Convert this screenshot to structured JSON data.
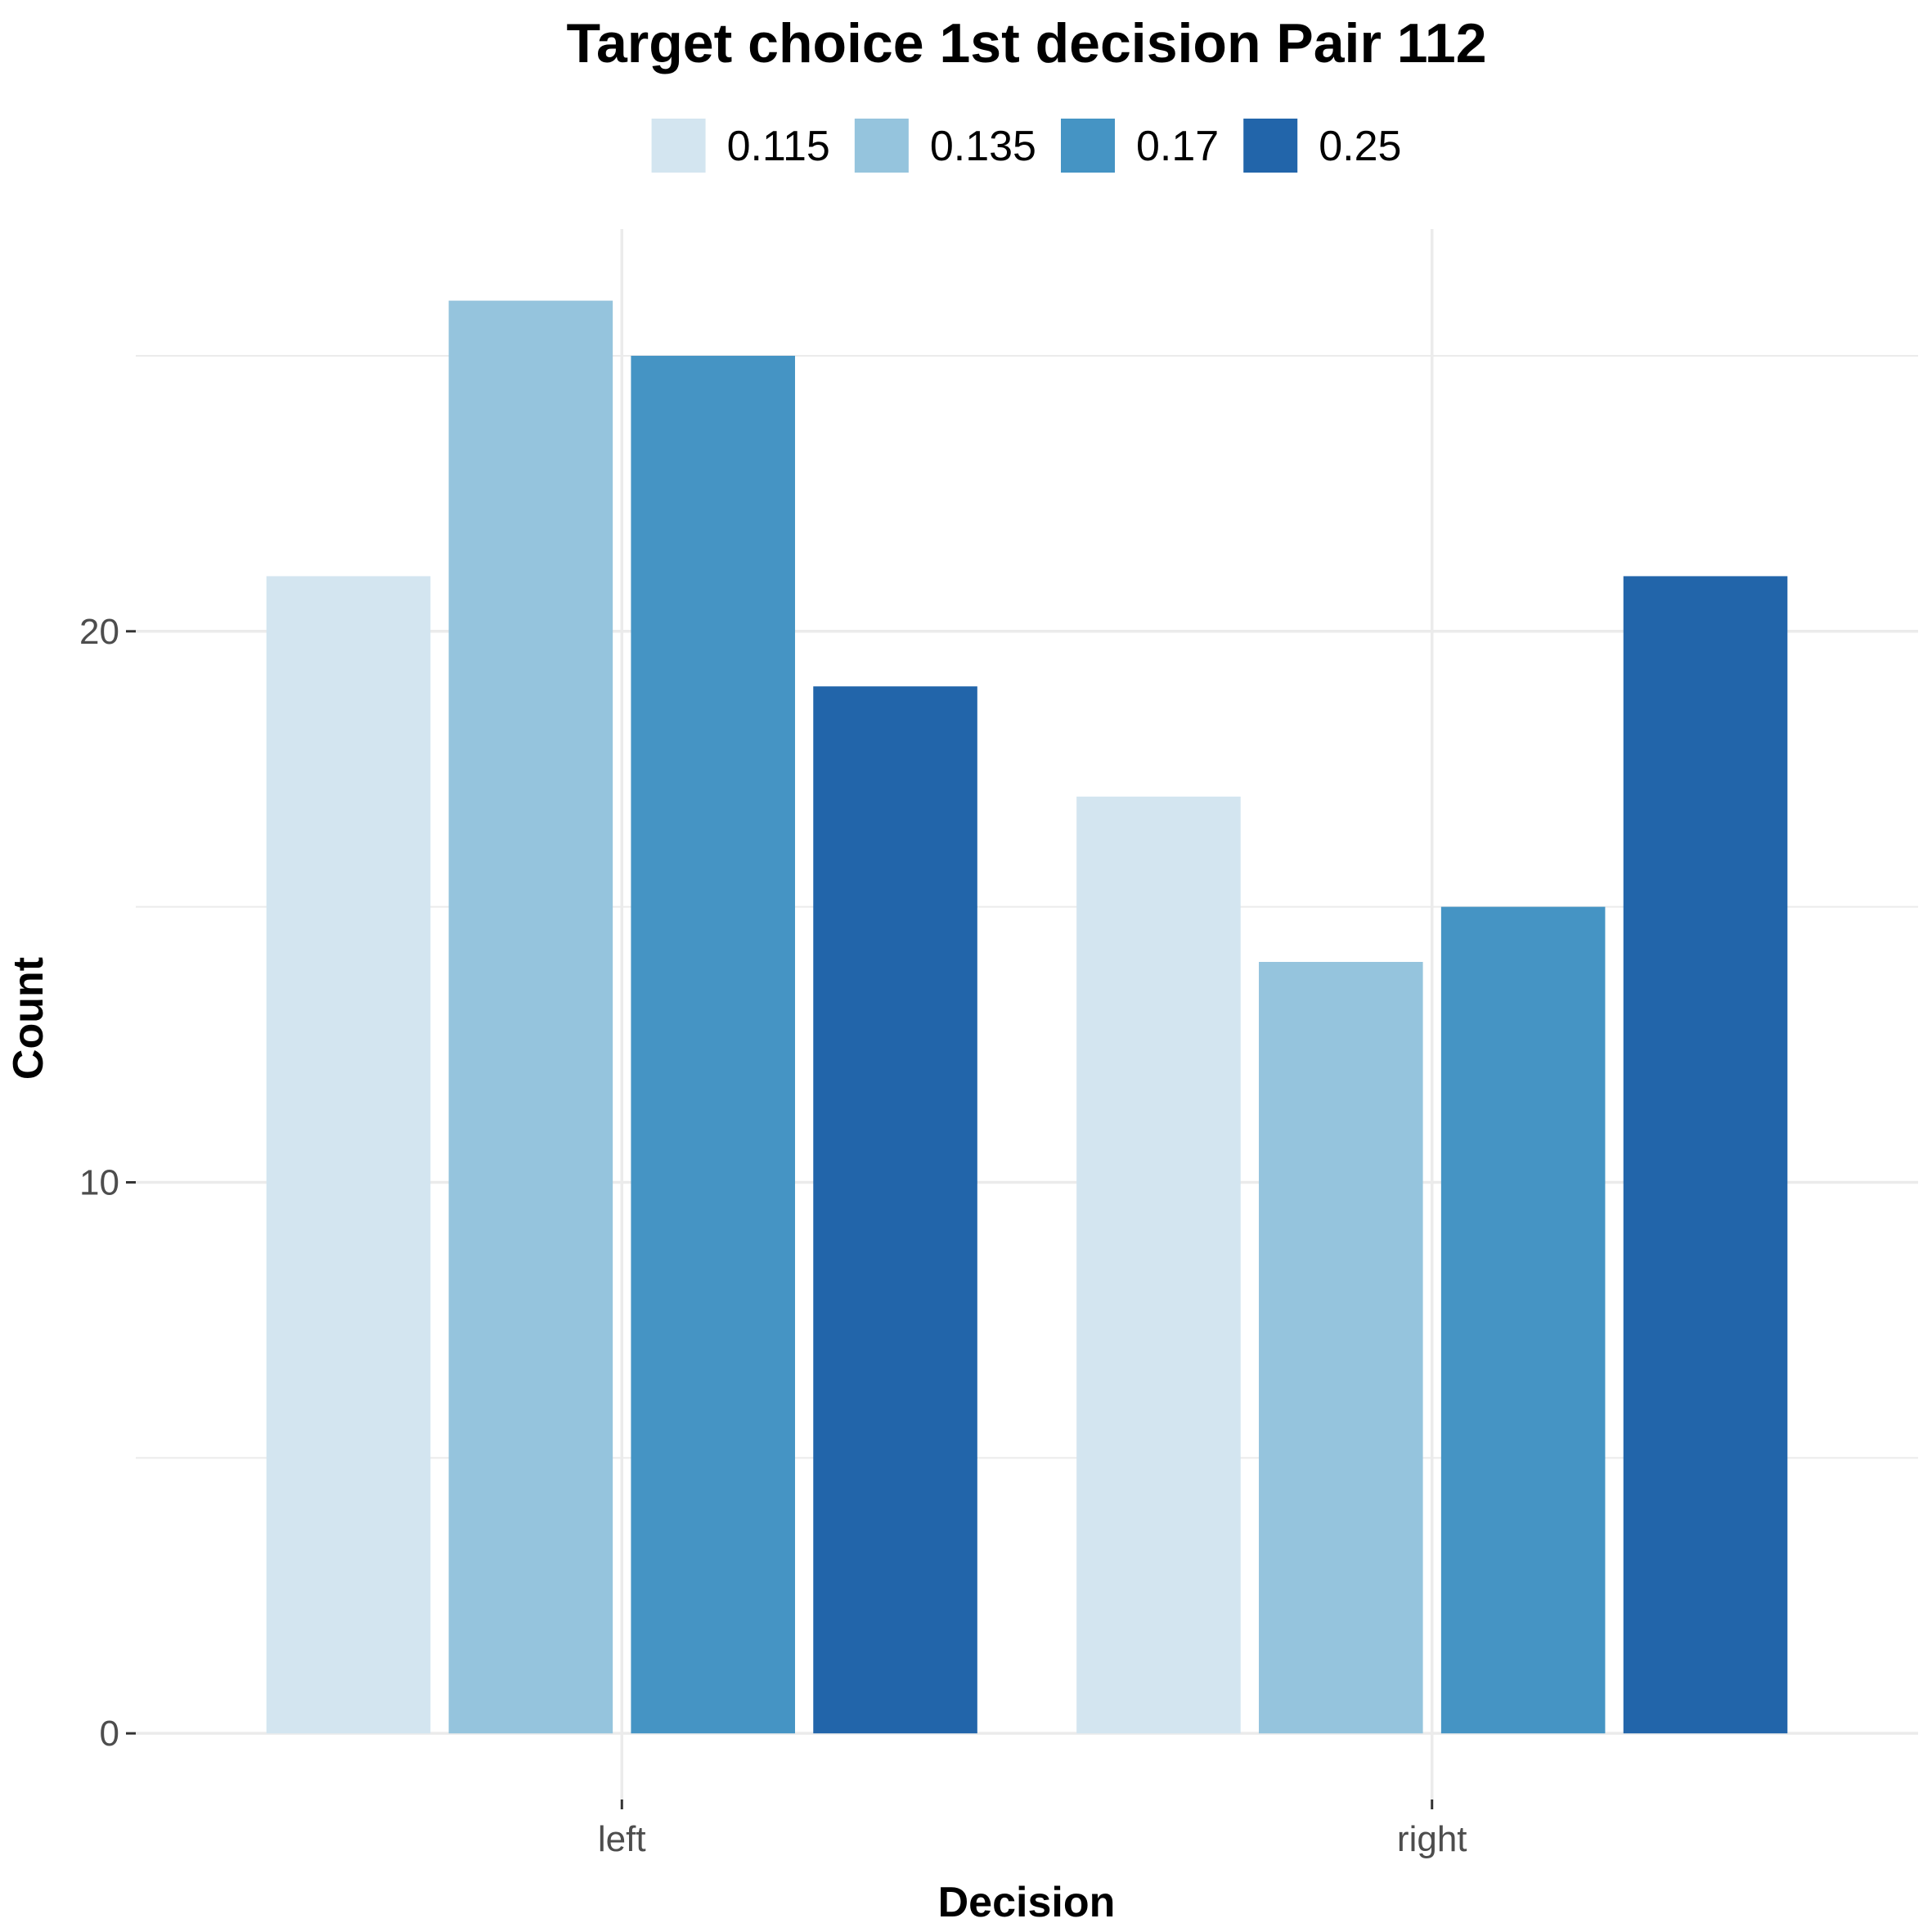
{
  "chart_data": {
    "type": "bar",
    "title": "Target choice 1st decision Pair 112",
    "xlabel": "Decision",
    "ylabel": "Count",
    "categories": [
      "left",
      "right"
    ],
    "series": [
      {
        "name": "0.115",
        "color": "#d3e5f0",
        "values": [
          21,
          17
        ]
      },
      {
        "name": "0.135",
        "color": "#95c4dd",
        "values": [
          26,
          14
        ]
      },
      {
        "name": "0.17",
        "color": "#4594c4",
        "values": [
          25,
          15
        ]
      },
      {
        "name": "0.25",
        "color": "#2265aa",
        "values": [
          19,
          21
        ]
      }
    ],
    "ylim": [
      -1.2,
      27.3
    ],
    "y_ticks": [
      0,
      10,
      20
    ],
    "y_tick_labels": [
      "0",
      "10",
      "20"
    ],
    "grid": true,
    "legend_position": "top"
  }
}
